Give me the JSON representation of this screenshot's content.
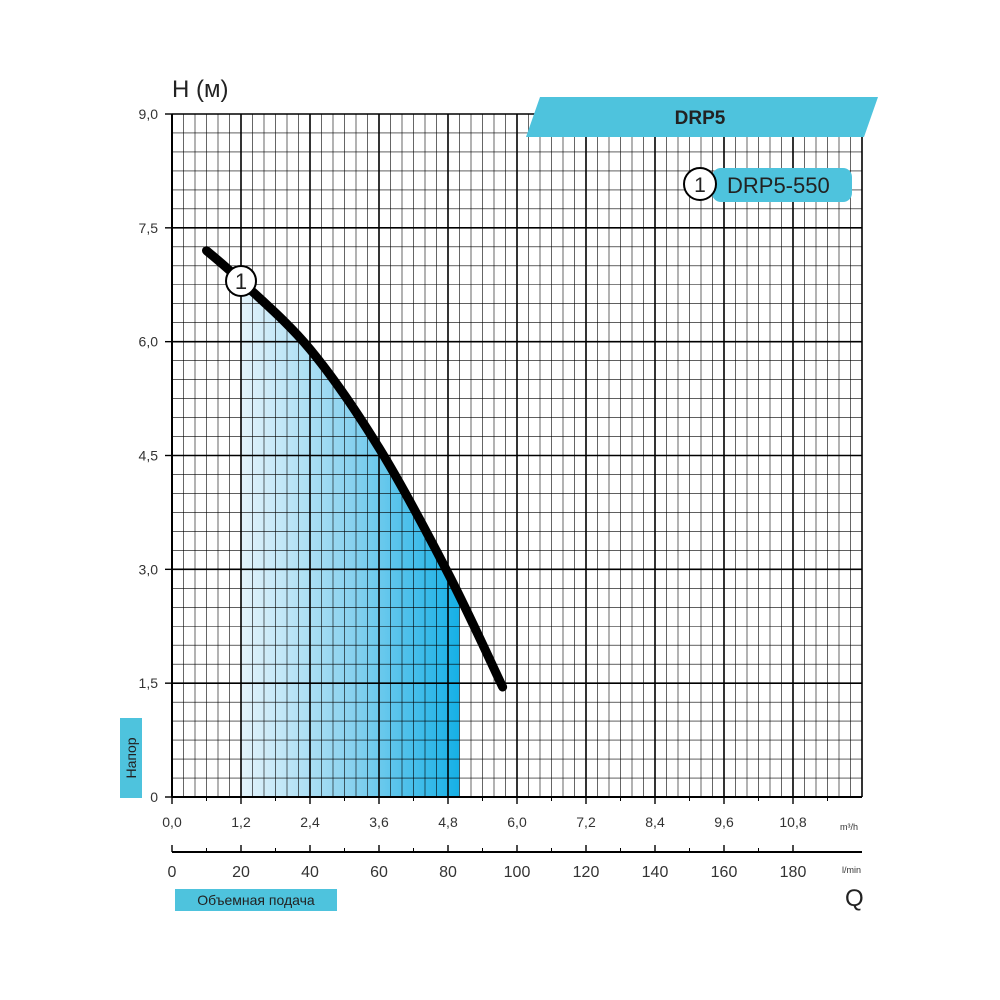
{
  "colors": {
    "accent": "#4ec3dd",
    "fill_light": "#e3f3fb",
    "fill_dark": "#16b0e6",
    "curve": "#000000",
    "grid": "#000000"
  },
  "chart_data": {
    "type": "line",
    "title": "DRP5",
    "y_axis_label": "H (м)",
    "y_side_label": "Напор",
    "x_axis_label": "Q",
    "x_side_label": "Объемная подача",
    "x_unit_primary": "m³/h",
    "x_unit_secondary": "l/min",
    "x_ticks_m3h": [
      "0,0",
      "1,2",
      "2,4",
      "3,6",
      "4,8",
      "6,0",
      "7,2",
      "8,4",
      "9,6",
      "10,8"
    ],
    "x_ticks_lmin": [
      "0",
      "20",
      "40",
      "60",
      "80",
      "100",
      "120",
      "140",
      "160",
      "180"
    ],
    "y_ticks": [
      "0",
      "1,5",
      "3,0",
      "4,5",
      "6,0",
      "7,5",
      "9,0"
    ],
    "xlim_m3h": [
      0,
      12
    ],
    "ylim": [
      0,
      9
    ],
    "grid": true,
    "legend": {
      "position": "top-right",
      "entries": [
        {
          "marker": "1",
          "label": "DRP5-550"
        }
      ]
    },
    "series": [
      {
        "name": "DRP5-550",
        "marker": "1",
        "x": [
          0.6,
          1.2,
          2.4,
          3.6,
          4.8,
          5.75
        ],
        "y": [
          7.2,
          6.8,
          5.9,
          4.6,
          2.95,
          1.45
        ]
      }
    ],
    "shaded_region": {
      "x_from": 1.2,
      "x_to": 5.0
    }
  }
}
